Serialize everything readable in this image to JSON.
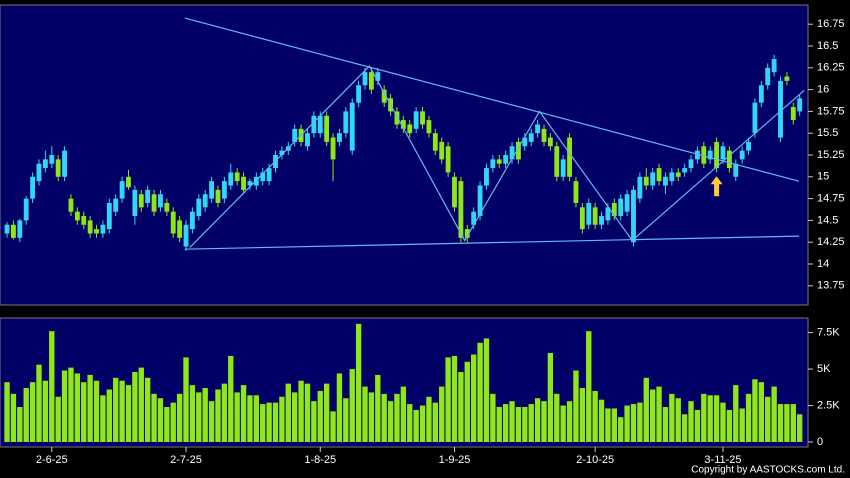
{
  "chart_data": [
    {
      "type": "candlestick",
      "xlim": [
        -1.1,
        125.3
      ],
      "ylim": [
        13.53,
        16.97
      ],
      "yticks": [
        13.75,
        14,
        14.25,
        14.5,
        14.75,
        15,
        15.25,
        15.5,
        15.75,
        16,
        16.25,
        16.5,
        16.75
      ],
      "up_color": "#33d6f5",
      "down_color": "#8fe619",
      "open": [
        14.35,
        14.45,
        14.3,
        14.5,
        14.75,
        14.95,
        15.1,
        15.15,
        15.2,
        15.0,
        14.75,
        14.6,
        14.55,
        14.5,
        14.4,
        14.35,
        14.4,
        14.6,
        14.75,
        15.0,
        14.55,
        14.8,
        14.7,
        14.8,
        14.65,
        14.7,
        14.6,
        14.5,
        14.2,
        14.4,
        14.55,
        14.65,
        14.75,
        14.85,
        14.75,
        14.9,
        15.05,
        15.0,
        14.9,
        14.9,
        14.95,
        14.95,
        15.1,
        15.25,
        15.3,
        15.4,
        15.55,
        15.35,
        15.5,
        15.5,
        15.7,
        15.45,
        15.4,
        15.5,
        15.3,
        15.85,
        16.05,
        16.2,
        16.1,
        16.0,
        15.9,
        15.75,
        15.65,
        15.6,
        15.55,
        15.75,
        15.65,
        15.5,
        15.4,
        15.35,
        15.0,
        14.95,
        14.4,
        14.45,
        14.55,
        14.9,
        15.1,
        15.2,
        15.15,
        15.2,
        15.4,
        15.35,
        15.4,
        15.5,
        15.55,
        15.45,
        15.35,
        15.0,
        15.45,
        14.95,
        14.65,
        14.45,
        14.65,
        14.45,
        14.5,
        14.7,
        14.55,
        14.6,
        14.25,
        14.75,
        15.0,
        14.9,
        15.1,
        14.9,
        14.95,
        15.05,
        15.05,
        15.1,
        15.2,
        15.35,
        15.2,
        15.4,
        15.2,
        15.3,
        15.0,
        15.2,
        15.3,
        15.5,
        15.85,
        16.05,
        16.2,
        15.45,
        16.15,
        15.8,
        15.75
      ],
      "high": [
        14.48,
        14.5,
        14.52,
        14.78,
        15.05,
        15.2,
        15.3,
        15.35,
        15.25,
        15.35,
        14.8,
        14.65,
        14.6,
        14.55,
        14.45,
        14.5,
        14.75,
        14.8,
        15.0,
        15.08,
        14.9,
        14.85,
        14.9,
        14.85,
        14.85,
        14.75,
        14.65,
        14.55,
        14.5,
        14.65,
        14.8,
        14.85,
        15.0,
        14.9,
        15.0,
        15.15,
        15.1,
        15.05,
        14.98,
        15.05,
        15.1,
        15.15,
        15.3,
        15.35,
        15.4,
        15.6,
        15.6,
        15.55,
        15.75,
        15.75,
        15.75,
        15.5,
        15.55,
        15.8,
        15.9,
        16.1,
        16.25,
        16.25,
        16.25,
        16.05,
        15.95,
        15.8,
        15.7,
        15.65,
        15.8,
        15.8,
        15.7,
        15.55,
        15.45,
        15.4,
        15.05,
        15.0,
        14.45,
        14.65,
        14.95,
        15.15,
        15.25,
        15.25,
        15.3,
        15.4,
        15.45,
        15.5,
        15.55,
        15.65,
        15.6,
        15.5,
        15.4,
        15.25,
        15.5,
        15.0,
        14.7,
        14.75,
        14.7,
        14.6,
        14.7,
        14.75,
        14.8,
        14.85,
        14.9,
        15.05,
        15.1,
        15.1,
        15.15,
        15.05,
        15.1,
        15.1,
        15.15,
        15.25,
        15.35,
        15.4,
        15.35,
        15.45,
        15.4,
        15.35,
        15.2,
        15.35,
        15.45,
        15.9,
        16.1,
        16.3,
        16.4,
        16.15,
        16.2,
        15.85,
        15.95
      ],
      "low": [
        14.3,
        14.28,
        14.25,
        14.45,
        14.7,
        14.9,
        15.05,
        15.1,
        14.95,
        14.95,
        14.55,
        14.45,
        14.4,
        14.3,
        14.3,
        14.3,
        14.35,
        14.55,
        14.7,
        14.85,
        14.45,
        14.6,
        14.65,
        14.55,
        14.6,
        14.55,
        14.3,
        14.25,
        14.15,
        14.35,
        14.5,
        14.6,
        14.7,
        14.65,
        14.7,
        14.85,
        14.9,
        14.8,
        14.85,
        14.85,
        14.9,
        14.9,
        15.05,
        15.2,
        15.25,
        15.35,
        15.35,
        15.3,
        15.45,
        15.45,
        15.35,
        14.95,
        15.35,
        15.45,
        15.25,
        15.8,
        16.0,
        15.95,
        16.05,
        15.8,
        15.7,
        15.55,
        15.5,
        15.45,
        15.5,
        15.55,
        15.45,
        15.25,
        15.15,
        15.0,
        14.6,
        14.25,
        14.25,
        14.4,
        14.5,
        14.85,
        15.05,
        15.1,
        15.1,
        15.15,
        15.15,
        15.3,
        15.35,
        15.45,
        15.35,
        15.3,
        14.95,
        14.95,
        14.95,
        14.65,
        14.35,
        14.4,
        14.4,
        14.4,
        14.45,
        14.5,
        14.5,
        14.55,
        14.2,
        14.7,
        14.85,
        14.85,
        14.9,
        14.8,
        14.9,
        14.95,
        15.0,
        15.05,
        15.15,
        15.1,
        15.15,
        15.05,
        15.15,
        15.05,
        14.95,
        15.15,
        15.25,
        15.45,
        15.8,
        16.0,
        16.15,
        15.4,
        16.05,
        15.6,
        15.7
      ],
      "close": [
        14.45,
        14.3,
        14.5,
        14.75,
        15.0,
        15.15,
        15.2,
        15.25,
        15.0,
        15.3,
        14.6,
        14.5,
        14.45,
        14.35,
        14.35,
        14.45,
        14.7,
        14.75,
        14.95,
        14.88,
        14.85,
        14.65,
        14.85,
        14.6,
        14.8,
        14.6,
        14.35,
        14.3,
        14.45,
        14.6,
        14.75,
        14.8,
        14.95,
        14.7,
        14.95,
        15.05,
        14.95,
        14.85,
        14.95,
        15.0,
        15.05,
        15.1,
        15.25,
        15.3,
        15.35,
        15.55,
        15.4,
        15.5,
        15.7,
        15.7,
        15.4,
        15.2,
        15.5,
        15.75,
        15.85,
        16.05,
        16.2,
        16.0,
        16.2,
        15.85,
        15.75,
        15.6,
        15.55,
        15.5,
        15.75,
        15.6,
        15.5,
        15.3,
        15.2,
        15.05,
        14.65,
        14.3,
        14.3,
        14.6,
        14.9,
        15.1,
        15.2,
        15.15,
        15.25,
        15.35,
        15.2,
        15.45,
        15.5,
        15.6,
        15.4,
        15.35,
        15.0,
        15.2,
        15.0,
        14.7,
        14.4,
        14.7,
        14.45,
        14.55,
        14.65,
        14.55,
        14.75,
        14.8,
        14.85,
        15.0,
        14.9,
        15.05,
        14.95,
        15.0,
        15.05,
        15.0,
        15.1,
        15.2,
        15.3,
        15.15,
        15.3,
        15.1,
        15.35,
        15.1,
        15.15,
        15.3,
        15.4,
        15.85,
        16.05,
        16.25,
        16.35,
        16.1,
        16.1,
        15.65,
        15.9
      ],
      "trendlines": [
        {
          "color": "#66b8ee",
          "x": [
            27.8,
            123.9
          ],
          "y": [
            16.82,
            14.95
          ]
        },
        {
          "color": "#66b8ee",
          "x": [
            27.8,
            123.9
          ],
          "y": [
            14.17,
            14.32
          ]
        },
        {
          "color": "#66b8ee",
          "x": [
            28.6,
            56.7,
            71.6,
            83.3,
            97.8,
            124.7
          ],
          "y": [
            14.19,
            16.27,
            14.27,
            15.75,
            14.27,
            15.99
          ]
        }
      ],
      "arrow": {
        "x": 111,
        "y": 14.88,
        "color": "#ffcc33"
      }
    },
    {
      "type": "bar",
      "xlim": [
        -1.1,
        125.3
      ],
      "ylim": [
        0,
        8500
      ],
      "color": "#8fe619",
      "yticks": [
        0,
        {
          "value": 2500,
          "label": "2.5K"
        },
        {
          "value": 5000,
          "label": "5K"
        },
        {
          "value": 7500,
          "label": "7.5K"
        }
      ],
      "xticks": [
        {
          "value": 7,
          "label": "2-6-25"
        },
        {
          "value": 28,
          "label": "2-7-25"
        },
        {
          "value": 49,
          "label": "1-8-25"
        },
        {
          "value": 70,
          "label": "1-9-25"
        },
        {
          "value": 92,
          "label": "2-10-25"
        },
        {
          "value": 112,
          "label": "3-11-25"
        }
      ],
      "values": [
        4100,
        3300,
        2400,
        3700,
        4100,
        5300,
        4200,
        7600,
        3100,
        4900,
        5100,
        4700,
        4100,
        4600,
        4200,
        3200,
        3600,
        4400,
        4200,
        3900,
        4800,
        5100,
        4400,
        3300,
        3000,
        2400,
        2700,
        3300,
        5800,
        3900,
        3400,
        3700,
        2800,
        3600,
        4000,
        5900,
        3400,
        3900,
        3200,
        3200,
        2600,
        2700,
        2700,
        3100,
        4000,
        3400,
        4200,
        4000,
        2800,
        3500,
        4000,
        2100,
        4700,
        3000,
        5000,
        8100,
        3800,
        3400,
        4600,
        3300,
        2800,
        3300,
        3800,
        2600,
        2200,
        2500,
        3100,
        2700,
        3800,
        5800,
        5900,
        4800,
        5500,
        6000,
        6800,
        7100,
        3300,
        2400,
        2600,
        2800,
        2400,
        2400,
        2600,
        3000,
        2800,
        6100,
        3300,
        2500,
        2800,
        4900,
        3700,
        7600,
        3500,
        2900,
        2300,
        2300,
        1700,
        2500,
        2600,
        2700,
        4400,
        3600,
        3800,
        2400,
        3300,
        3000,
        1900,
        2800,
        2200,
        3300,
        3200,
        3200,
        2700,
        2200,
        3900,
        2300,
        3300,
        4300,
        4100,
        3100,
        3800,
        2600,
        2600,
        2600,
        1900
      ]
    }
  ],
  "copyright": "Copyright by AASTOCKS.com Ltd."
}
